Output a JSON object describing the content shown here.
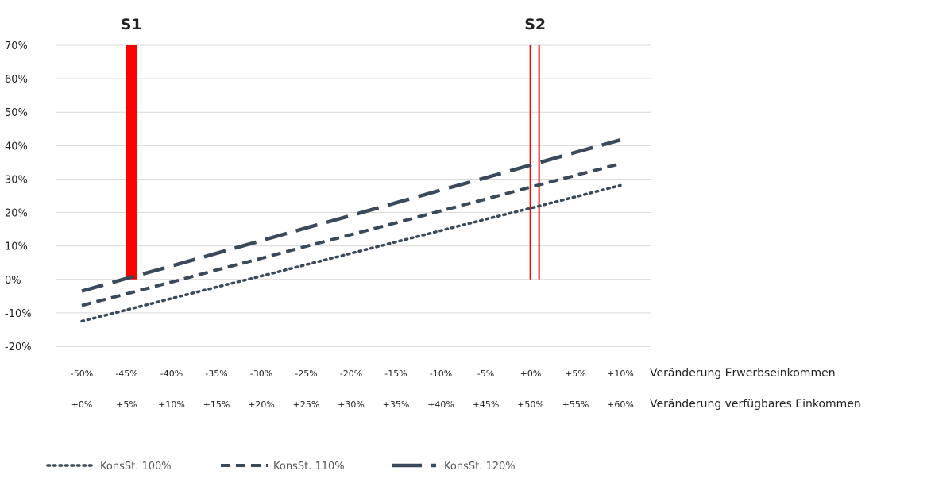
{
  "colors": {
    "line": "#3a4a5a",
    "marker": "#ff0000",
    "grid": "#d9d9d9",
    "axis": "#bfbfbf"
  },
  "chart_data": {
    "type": "line",
    "title": "",
    "ylim": [
      -20,
      70
    ],
    "y_ticks": [
      "70%",
      "60%",
      "50%",
      "40%",
      "30%",
      "20%",
      "10%",
      "0%",
      "-10%",
      "-20%"
    ],
    "x_erwerb": [
      -50,
      -45,
      -40,
      -35,
      -30,
      -25,
      -20,
      -15,
      -10,
      -5,
      0,
      5,
      10
    ],
    "x_ticks_row1": [
      "-50%",
      "-45%",
      "-40%",
      "-35%",
      "-30%",
      "-25%",
      "-20%",
      "-15%",
      "-10%",
      "-5%",
      "+0%",
      "+5%",
      "+10%"
    ],
    "x_ticks_row2": [
      "+0%",
      "+5%",
      "+10%",
      "+15%",
      "+20%",
      "+25%",
      "+30%",
      "+35%",
      "+40%",
      "+45%",
      "+50%",
      "+55%",
      "+60%"
    ],
    "row1_label": "Veränderung Erwerbseinkommen",
    "row2_label": "Veränderung verfügbares Einkommen",
    "series": [
      {
        "name": "KonsSt. 100%",
        "style": "dotted",
        "values": [
          -12.5,
          -9.1,
          -5.7,
          -2.3,
          1.0,
          4.4,
          7.8,
          11.2,
          14.6,
          18.0,
          21.3,
          24.7,
          28.1
        ]
      },
      {
        "name": "KonsSt. 110%",
        "style": "dashed",
        "values": [
          -7.8,
          -4.3,
          -0.8,
          2.8,
          6.3,
          9.9,
          13.4,
          16.9,
          20.5,
          24.0,
          27.6,
          31.1,
          34.6
        ]
      },
      {
        "name": "KonsSt. 120%",
        "style": "longdash",
        "values": [
          -3.5,
          0.3,
          4.0,
          7.8,
          11.6,
          15.4,
          19.1,
          22.9,
          26.7,
          30.4,
          34.2,
          38.0,
          41.7
        ]
      }
    ],
    "markers": [
      {
        "label": "S1",
        "x": -44.5,
        "style": "solid"
      },
      {
        "label": "S2",
        "x": 0.5,
        "style": "double"
      }
    ],
    "legend_position": "bottom-left"
  }
}
